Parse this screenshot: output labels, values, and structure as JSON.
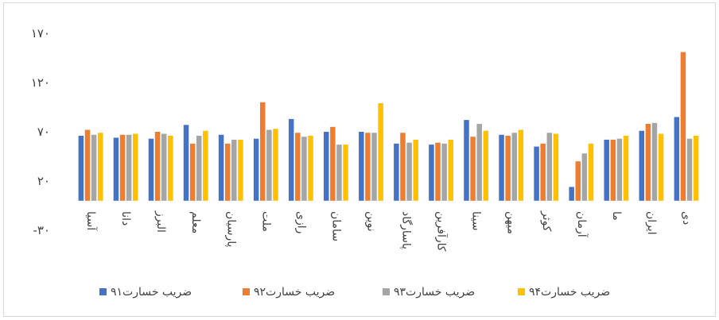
{
  "chart_data": {
    "type": "bar",
    "title": "",
    "xlabel": "",
    "ylabel": "",
    "ylim": [
      -30,
      170
    ],
    "yticks": [
      -30,
      20,
      70,
      120,
      170
    ],
    "ytick_labels": [
      "-۳۰",
      "۲۰",
      "۷۰",
      "۱۲۰",
      "۱۷۰"
    ],
    "grid": false,
    "legend_position": "bottom",
    "categories": [
      "آسیا",
      "دانا",
      "البرز",
      "معلم",
      "پارسیان",
      "ملت",
      "رازی",
      "سامان",
      "نوین",
      "پاسارگاد",
      "کارآفرین",
      "سینا",
      "میهن",
      "کوثر",
      "آرمان",
      "ما",
      "ایران",
      "دی"
    ],
    "series": [
      {
        "name": "ضریب خسارت۹۱",
        "color": "#4472C4",
        "values": [
          66,
          64,
          63,
          77,
          67,
          63,
          83,
          70,
          70,
          58,
          57,
          82,
          67,
          55,
          14,
          62,
          71,
          85
        ]
      },
      {
        "name": "ضریب خسارت۹۲",
        "color": "#ED7D31",
        "values": [
          72,
          67,
          70,
          58,
          58,
          100,
          69,
          75,
          69,
          69,
          59,
          65,
          66,
          58,
          40,
          62,
          78,
          151
        ]
      },
      {
        "name": "ضریب خسارت۹۳",
        "color": "#A5A5A5",
        "values": [
          67,
          67,
          68,
          66,
          62,
          72,
          65,
          57,
          69,
          59,
          58,
          78,
          69,
          69,
          48,
          63,
          79,
          63
        ]
      },
      {
        "name": "ضریب خسارت۹۴",
        "color": "#FFC000",
        "values": [
          69,
          68,
          66,
          71,
          62,
          73,
          66,
          57,
          99,
          62,
          62,
          71,
          72,
          68,
          58,
          66,
          68,
          66
        ]
      }
    ]
  }
}
